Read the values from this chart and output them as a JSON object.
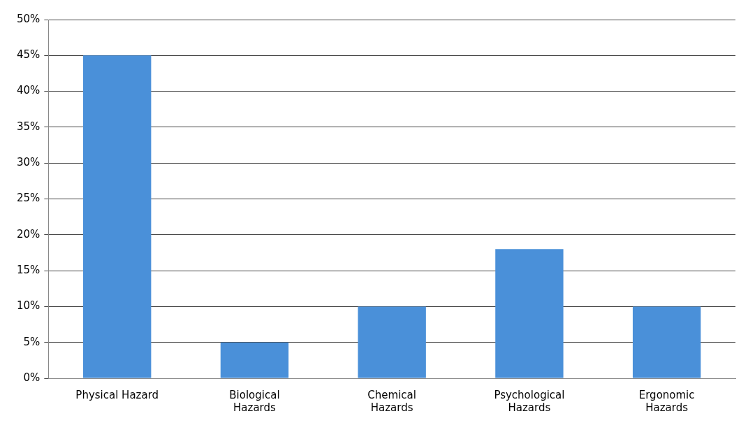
{
  "chart_data": {
    "type": "bar",
    "categories": [
      "Physical Hazard",
      "Biological Hazards",
      "Chemical Hazards",
      "Psychological Hazards",
      "Ergonomic Hazards"
    ],
    "values": [
      45,
      5,
      10,
      18,
      10
    ],
    "color": "#4a90d9",
    "ylim": [
      0,
      50
    ],
    "yticks": [
      {
        "value": 0,
        "label": "0%"
      },
      {
        "value": 5,
        "label": "5%"
      },
      {
        "value": 10,
        "label": "10%"
      },
      {
        "value": 15,
        "label": "15%"
      },
      {
        "value": 20,
        "label": "20%"
      },
      {
        "value": 25,
        "label": "25%"
      },
      {
        "value": 30,
        "label": "30%"
      },
      {
        "value": 35,
        "label": "35%"
      },
      {
        "value": 40,
        "label": "40%"
      },
      {
        "value": 45,
        "label": "45%"
      },
      {
        "value": 50,
        "label": "50%"
      }
    ],
    "grid": "y",
    "legend": false
  }
}
